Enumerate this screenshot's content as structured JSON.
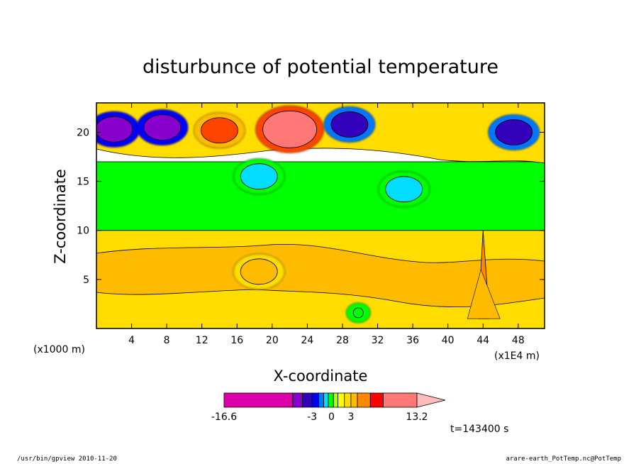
{
  "chart_data": {
    "type": "heatmap",
    "title": "disturbunce of potential temperature",
    "xlabel": "X-coordinate",
    "ylabel": "Z-coordinate",
    "x_unit_left": "(x1000 m)",
    "x_unit_right": "(x1E4 m)",
    "xlim": [
      0,
      51
    ],
    "ylim": [
      0,
      23
    ],
    "x_ticks": [
      "4",
      "8",
      "12",
      "16",
      "20",
      "24",
      "28",
      "32",
      "36",
      "40",
      "44",
      "48"
    ],
    "y_ticks": [
      "5",
      "10",
      "15",
      "20"
    ],
    "colorbar_labels": [
      "-16.6",
      "-3",
      "0",
      "3",
      "13.2"
    ],
    "colorbar_range": [
      -16.6,
      13.2
    ],
    "time_label": "t=143400 s",
    "palette": [
      "#dd00aa",
      "#8800cc",
      "#3300bb",
      "#0000ff",
      "#0077ff",
      "#00ddff",
      "#00ff00",
      "#aaff00",
      "#ffff00",
      "#ffdd00",
      "#ffbb00",
      "#ff8800",
      "#ff4400",
      "#ff0000",
      "#ff7777",
      "#ffaaaa"
    ],
    "features": [
      {
        "name": "lower layer",
        "x_range": [
          0,
          51
        ],
        "z_range": [
          0,
          10
        ],
        "value": 1.5
      },
      {
        "name": "upper layer",
        "x_range": [
          0,
          51
        ],
        "z_range": [
          10,
          17
        ],
        "value": -0.5
      },
      {
        "name": "warm core",
        "x": 22,
        "z": 20.3,
        "value": 10
      },
      {
        "name": "warm blob",
        "x": 14,
        "z": 20.2,
        "value": 5
      },
      {
        "name": "warm blob",
        "x": 18.5,
        "z": 5.8,
        "value": 2.5
      },
      {
        "name": "cold cell",
        "x": 2,
        "z": 20.3,
        "value": -9
      },
      {
        "name": "cold cell",
        "x": 7.5,
        "z": 20.5,
        "value": -9
      },
      {
        "name": "cold cell",
        "x": 28.8,
        "z": 20.8,
        "value": -8
      },
      {
        "name": "cold cell",
        "x": 47.5,
        "z": 20,
        "value": -6
      },
      {
        "name": "cool area",
        "x": 18.5,
        "z": 15.5,
        "value": -1.5
      },
      {
        "name": "cool area",
        "x": 35,
        "z": 14.2,
        "value": -1.5
      },
      {
        "name": "wave column",
        "x": 44,
        "z_range": [
          1,
          10
        ],
        "value": 4
      },
      {
        "name": "small cool spot",
        "x": 29.8,
        "z": 1.6,
        "value": -1
      }
    ]
  },
  "footer": {
    "left": "/usr/bin/gpview   2010-11-20",
    "right": "arare-earth_PotTemp.nc@PotTemp"
  }
}
